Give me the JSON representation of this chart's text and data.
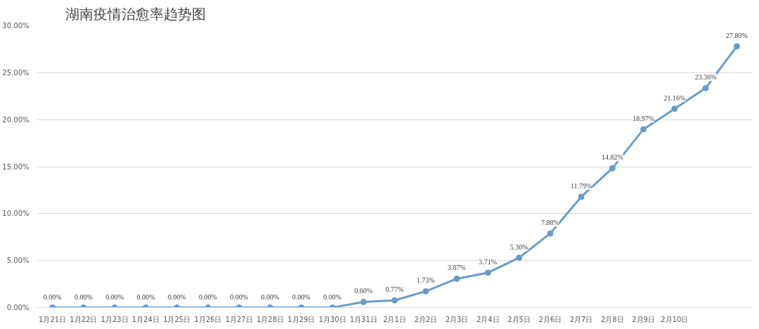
{
  "chart_data": {
    "type": "line",
    "title": "湖南疫情治愈率趋势图",
    "categories": [
      "1月21日",
      "1月22日",
      "1月23日",
      "1月24日",
      "1月25日",
      "1月26日",
      "1月27日",
      "1月28日",
      "1月29日",
      "1月30日",
      "1月31日",
      "2月1日",
      "2月2日",
      "2月3日",
      "2月4日",
      "2月5日",
      "2月6日",
      "2月7日",
      "2月8日",
      "2月9日",
      "2月10日",
      null,
      null
    ],
    "series": [
      {
        "color": "#6a9cc9",
        "values": [
          0,
          0,
          0,
          0,
          0,
          0,
          0,
          0,
          0,
          0,
          0.6,
          0.77,
          1.73,
          3.07,
          3.71,
          5.3,
          7.88,
          11.79,
          14.82,
          18.97,
          21.16,
          23.36,
          27.8
        ],
        "value_labels": [
          "0.00%",
          "0.00%",
          "0.00%",
          "0.00%",
          "0.00%",
          "0.00%",
          "0.00%",
          "0.00%",
          "0.00%",
          "0.00%",
          "0.60%",
          "0.77%",
          "1.73%",
          "3.07%",
          "3.71%",
          "5.30%",
          "7.88%",
          "11.79%",
          "14.82%",
          "18.97%",
          "21.16%",
          "23.36%",
          "27.80%"
        ]
      }
    ],
    "ylim": [
      0,
      30
    ],
    "yticks": [
      {
        "value": 0,
        "label": "0.00%"
      },
      {
        "value": 5,
        "label": "5.00%"
      },
      {
        "value": 10,
        "label": "10.00%"
      },
      {
        "value": 15,
        "label": "15.00%"
      },
      {
        "value": 20,
        "label": "20.00%"
      },
      {
        "value": 25,
        "label": "25.00%"
      },
      {
        "value": 30,
        "label": "30.00%"
      }
    ],
    "grid": "y",
    "marker": "circle",
    "line_style": "solid"
  }
}
